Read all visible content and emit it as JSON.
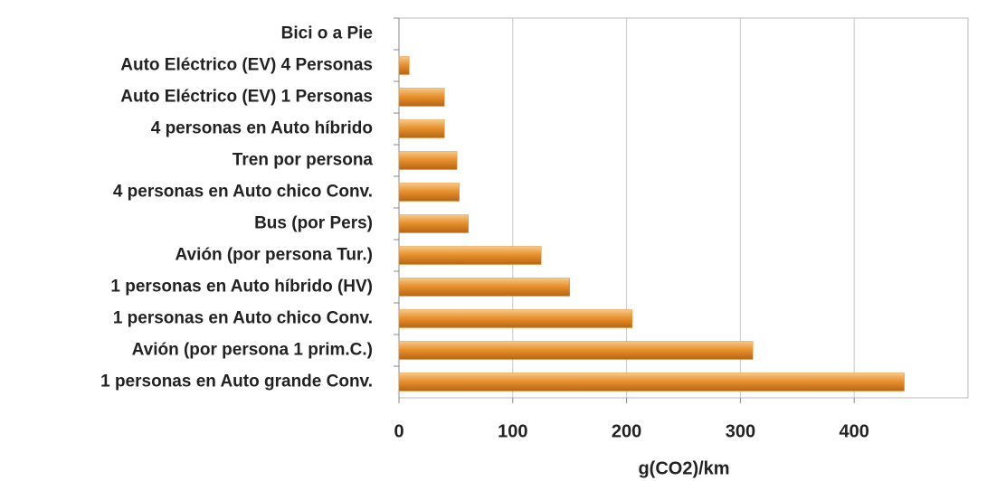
{
  "chart_data": {
    "type": "bar",
    "orientation": "horizontal",
    "x_label": "g(CO2)/km",
    "categories": [
      "Bici o a Pie",
      "Auto Eléctrico (EV) 4 Personas",
      "Auto Eléctrico (EV) 1  Personas",
      "4 personas en Auto híbrido",
      "Tren por persona",
      "4 personas en Auto chico Conv.",
      "Bus (por Pers)",
      "Avión (por persona Tur.)",
      "1 personas en Auto híbrido (HV)",
      "1 personas en Auto chico Conv.",
      "Avión (por persona 1 prim.C.)",
      "1 personas en Auto grande Conv."
    ],
    "values": [
      0,
      9,
      40,
      40,
      51,
      53,
      61,
      125,
      150,
      205,
      311,
      444
    ],
    "color": "#e8922e",
    "xlim": [
      0,
      500
    ],
    "xticks": [
      0,
      100,
      200,
      300,
      400
    ],
    "grid": true
  }
}
